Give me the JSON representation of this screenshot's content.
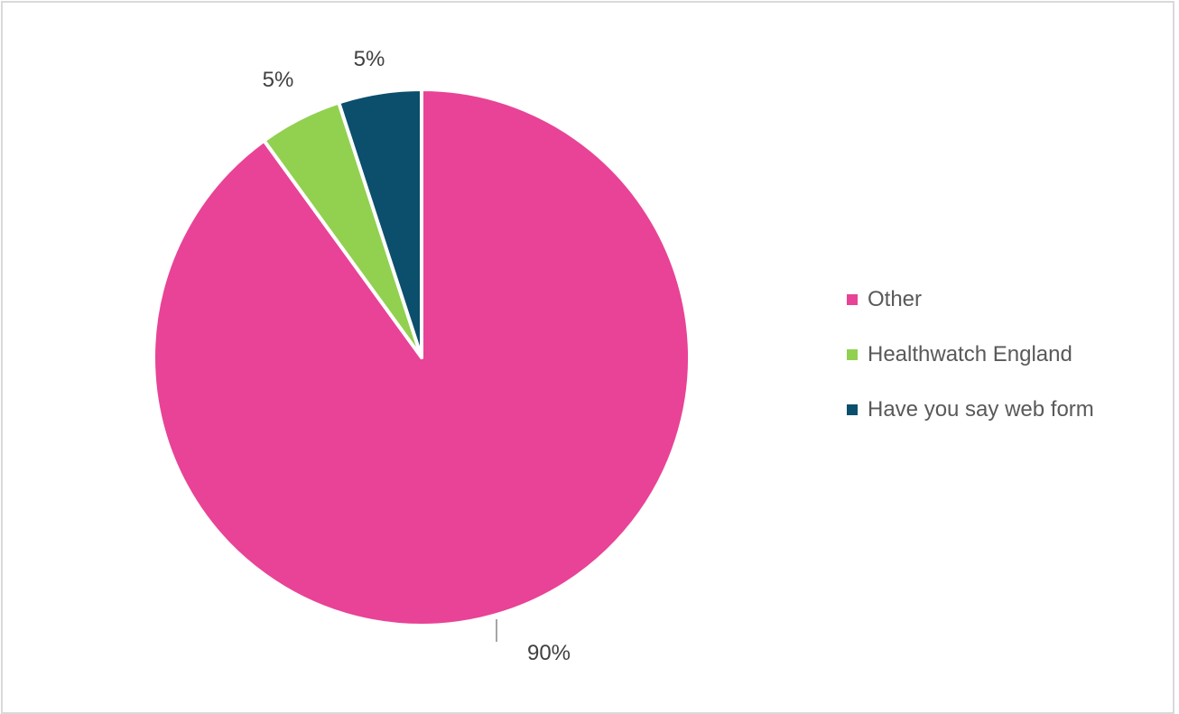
{
  "chart_data": {
    "type": "pie",
    "title": "",
    "slices": [
      {
        "label": "Other",
        "value": 90,
        "data_label": "90%",
        "color": "#e84396"
      },
      {
        "label": "Healthwatch England",
        "value": 5,
        "data_label": "5%",
        "color": "#92d050"
      },
      {
        "label": "Have you say web form",
        "value": 5,
        "data_label": "5%",
        "color": "#0b4f6c"
      }
    ],
    "legend_position": "right",
    "start_angle": "12 o'clock",
    "direction": "clockwise"
  }
}
